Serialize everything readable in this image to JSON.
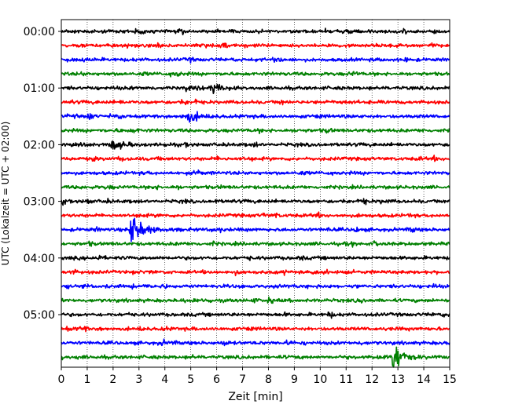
{
  "chart_data": {
    "type": "line",
    "title": "",
    "xlabel": "Zeit  [min]",
    "ylabel": "UTC (Lokalzeit = UTC + 02:00)",
    "xlim": [
      0,
      15
    ],
    "x_ticks": [
      "0",
      "1",
      "2",
      "3",
      "4",
      "5",
      "6",
      "7",
      "8",
      "9",
      "10",
      "11",
      "12",
      "13",
      "14",
      "15"
    ],
    "y_ticks": [
      {
        "label": "00:00",
        "row": 0
      },
      {
        "label": "01:00",
        "row": 4
      },
      {
        "label": "02:00",
        "row": 8
      },
      {
        "label": "03:00",
        "row": 12
      },
      {
        "label": "04:00",
        "row": 16
      },
      {
        "label": "05:00",
        "row": 20
      }
    ],
    "grid": "vertical dotted",
    "row_count": 24,
    "row_minutes": 15,
    "colors": [
      "#000000",
      "#ff0000",
      "#0000ff",
      "#008000"
    ],
    "events": [
      {
        "row": 14,
        "x": 2.7,
        "amplitude": 1.0
      },
      {
        "row": 23,
        "x": 12.8,
        "amplitude": 0.8
      },
      {
        "row": 6,
        "x": 4.9,
        "amplitude": 0.35
      },
      {
        "row": 4,
        "x": 5.8,
        "amplitude": 0.3
      },
      {
        "row": 8,
        "x": 2.0,
        "amplitude": 0.25
      }
    ]
  }
}
